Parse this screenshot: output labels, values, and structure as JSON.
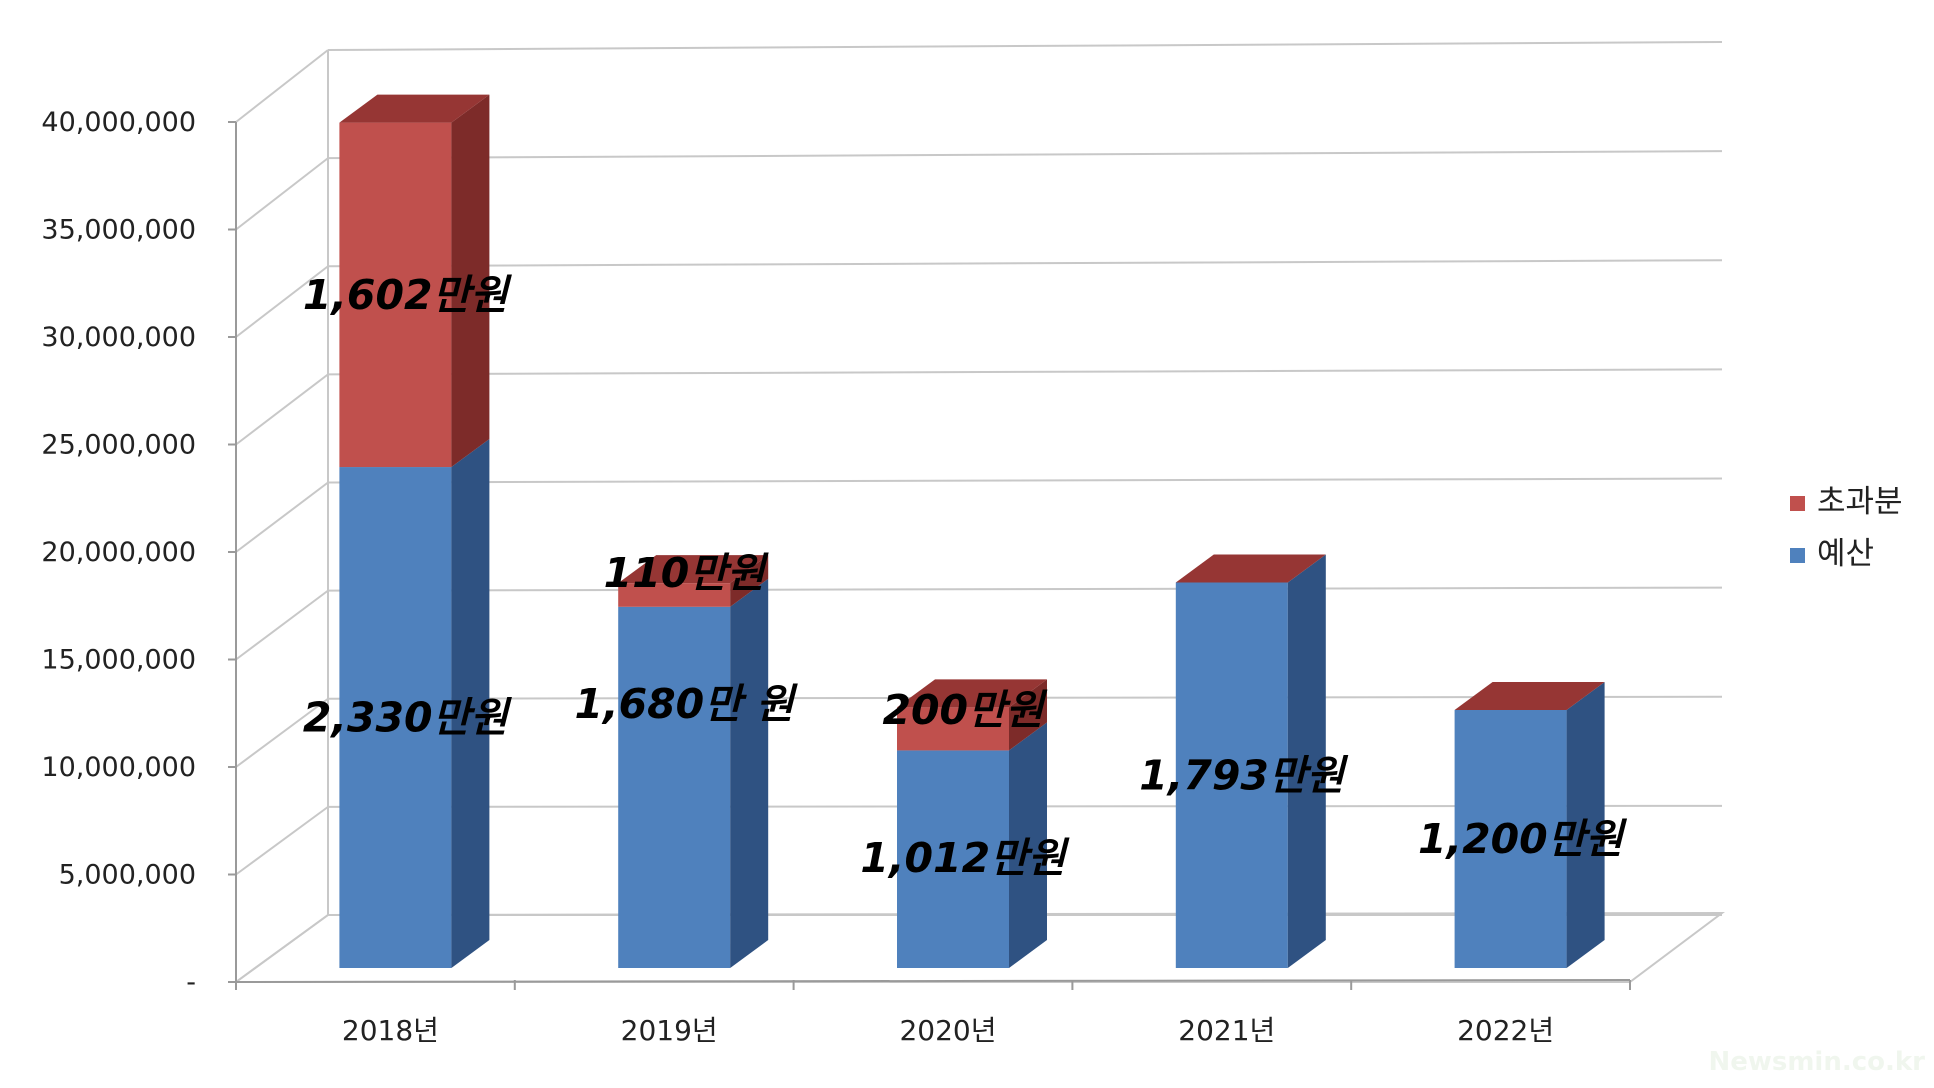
{
  "chart_data": {
    "type": "bar",
    "stacked": true,
    "three_d": true,
    "categories": [
      "2018년",
      "2019년",
      "2020년",
      "2021년",
      "2022년"
    ],
    "series": [
      {
        "name": "예산",
        "values": [
          23300000,
          16800000,
          10120000,
          17930000,
          12000000
        ],
        "labels": [
          "2,330만원",
          "1,680만 원",
          "1,012만원",
          "1,793만원",
          "1,200만원"
        ]
      },
      {
        "name": "초과분",
        "values": [
          16020000,
          1100000,
          2000000,
          0,
          0
        ],
        "labels": [
          "1,602만원",
          "110만원",
          "200만원",
          "",
          ""
        ]
      }
    ],
    "y_ticks": [
      "-",
      "5,000,000",
      "10,000,000",
      "15,000,000",
      "20,000,000",
      "25,000,000",
      "30,000,000",
      "35,000,000",
      "40,000,000"
    ],
    "ylim": [
      0,
      40000000
    ],
    "grid": true,
    "legend": "right",
    "title": "",
    "xlabel": "",
    "ylabel": ""
  },
  "colors": {
    "budget_front": "#4f81bd",
    "budget_side": "#2f5282",
    "budget_top": "#6b97cc",
    "over_front": "#c0504d",
    "over_side": "#7d2b29",
    "over_top": "#963634",
    "grid": "#c8c8c8",
    "axis": "#9a9a9a"
  },
  "watermark": "Newsmin.co.kr"
}
